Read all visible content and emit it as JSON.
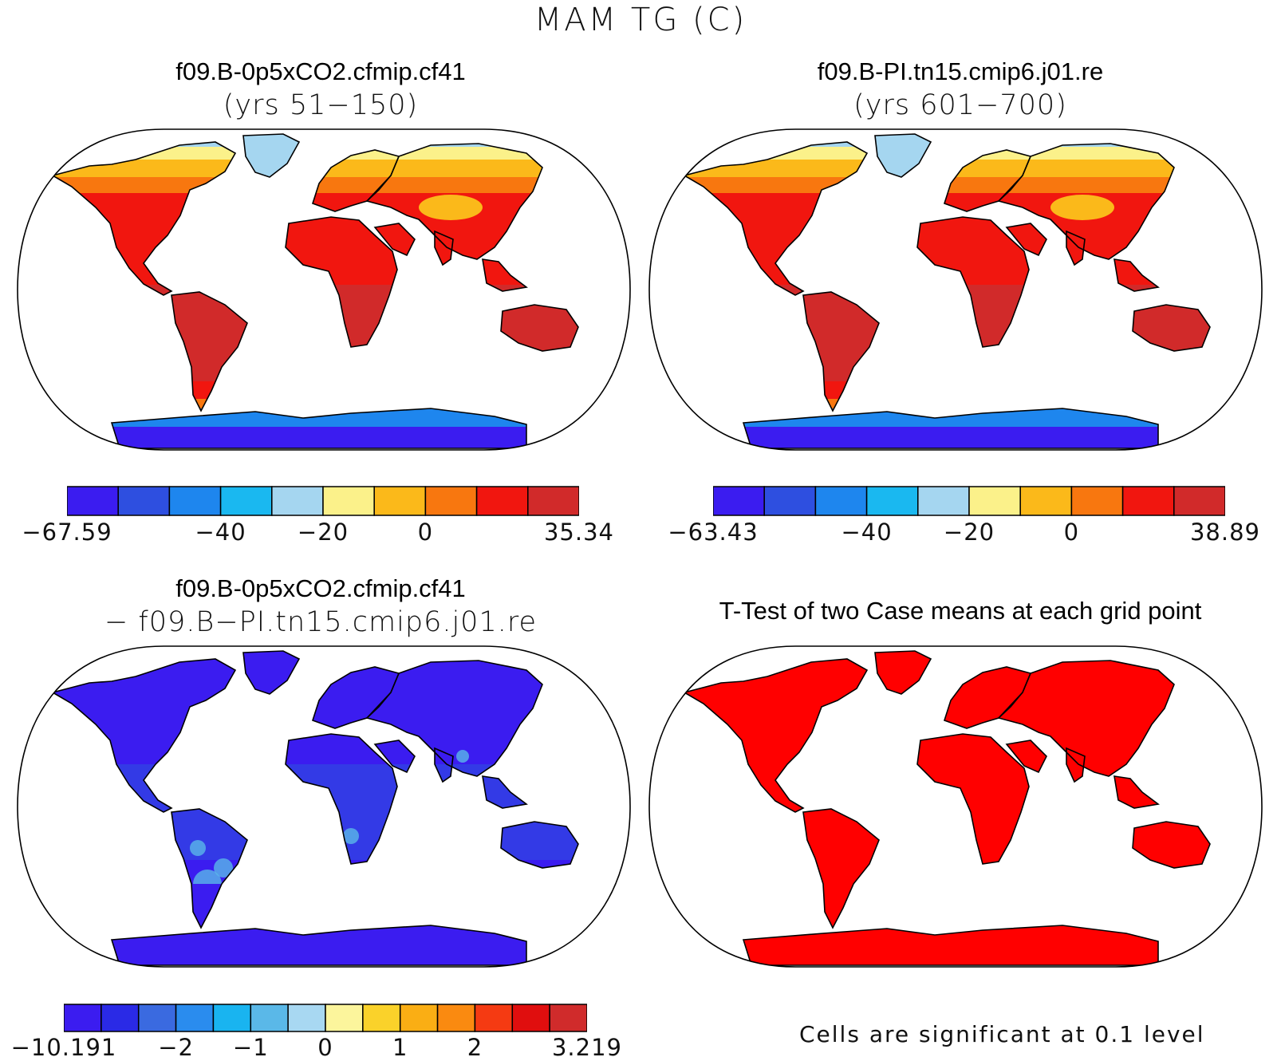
{
  "title": "MAM TG (C)",
  "panels": [
    {
      "id": "case1",
      "title_line1": "f09.B-0p5xCO2.cfmip.cf41",
      "title_line2": "(yrs 51−150)",
      "colorbar": {
        "colors": [
          "#3b1cf0",
          "#2e4fe0",
          "#1e86ee",
          "#1ab8f0",
          "#a5d6f0",
          "#fbf18a",
          "#fbb91a",
          "#f8770f",
          "#f1160f",
          "#d12a2a"
        ],
        "tick_labels": [
          "−67.59",
          "−40",
          "−20",
          "0",
          "35.34"
        ]
      }
    },
    {
      "id": "case2",
      "title_line1": "f09.B-PI.tn15.cmip6.j01.re",
      "title_line2": "(yrs 601−700)",
      "colorbar": {
        "colors": [
          "#3b1cf0",
          "#2e4fe0",
          "#1e86ee",
          "#1ab8f0",
          "#a5d6f0",
          "#fbf18a",
          "#fbb91a",
          "#f8770f",
          "#f1160f",
          "#d12a2a"
        ],
        "tick_labels": [
          "−63.43",
          "−40",
          "−20",
          "0",
          "38.89"
        ]
      }
    },
    {
      "id": "difference",
      "title_line1": "f09.B-0p5xCO2.cfmip.cf41",
      "title_line2": "− f09.B−PI.tn15.cmip6.j01.re",
      "colorbar": {
        "colors": [
          "#3b1cf0",
          "#2a2ae6",
          "#3a6ae0",
          "#2a8cee",
          "#19b4f0",
          "#5ab8e8",
          "#a8d8f2",
          "#fcf59c",
          "#fad22a",
          "#faae14",
          "#fa8a10",
          "#f53a12",
          "#e00e0e",
          "#d02b2b"
        ],
        "tick_labels": [
          "−10.191",
          "−2",
          "−1",
          "0",
          "1",
          "2",
          "3.219"
        ]
      }
    },
    {
      "id": "ttest",
      "title_line1": "T-Test of two Case means at each grid point",
      "note": "Cells are significant at 0.1 level"
    }
  ],
  "map_colors": {
    "case_land": "#d12a2a",
    "case_warm": "#f1160f",
    "case_mid": "#f8770f",
    "case_cool": "#fbb91a",
    "case_cold": "#fbf18a",
    "case_ice": "#a5d6f0",
    "case_polar": "#1e86ee",
    "case_deep": "#3b1cf0",
    "diff_land": "#3b1cf0",
    "diff_mid": "#2e4fe0",
    "diff_light": "#5ab8e8",
    "sig_land": "#ff0000"
  }
}
